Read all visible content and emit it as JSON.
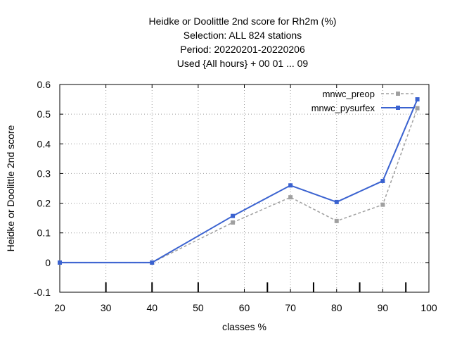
{
  "chart_data": {
    "type": "line",
    "title": [
      "Heidke or Doolittle 2nd score  for Rh2m (%)",
      "Selection: ALL    824 stations",
      "Period: 20220201-20220206",
      "Used {All hours} + 00 01 ... 09"
    ],
    "xlabel": "classes %",
    "ylabel": "Heidke or Doolittle 2nd score",
    "xlim": [
      20,
      100
    ],
    "ylim": [
      -0.1,
      0.6
    ],
    "xticks": [
      20,
      30,
      40,
      50,
      60,
      70,
      80,
      90,
      100
    ],
    "yticks": [
      -0.1,
      0,
      0.1,
      0.2,
      0.3,
      0.4,
      0.5,
      0.6
    ],
    "ytick_labels": [
      "-0.1",
      "0",
      "0.1",
      "0.2",
      "0.3",
      "0.4",
      "0.5",
      "0.6"
    ],
    "grid": true,
    "legend_position": "top-right",
    "class_tick_marks": [
      30,
      40,
      50,
      65,
      75,
      85,
      95
    ],
    "series": [
      {
        "name": "mnwc_preop",
        "color": "#a0a0a0",
        "dashed": true,
        "x": [
          20,
          40,
          57.5,
          70,
          80,
          90,
          97.5
        ],
        "y": [
          0.0,
          0.0,
          0.135,
          0.22,
          0.14,
          0.195,
          0.52
        ]
      },
      {
        "name": "mnwc_pysurfex",
        "color": "#3a62d0",
        "dashed": false,
        "x": [
          20,
          40,
          57.5,
          70,
          80,
          90,
          97.5
        ],
        "y": [
          0.0,
          0.0,
          0.157,
          0.26,
          0.204,
          0.275,
          0.55
        ]
      }
    ]
  }
}
